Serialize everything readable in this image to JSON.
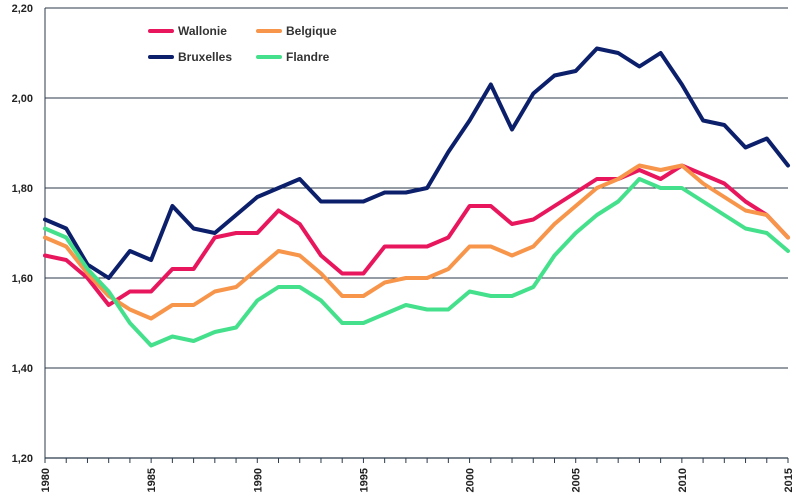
{
  "chart_data": {
    "type": "line",
    "title": "",
    "xlabel": "",
    "ylabel": "",
    "x": [
      1980,
      1981,
      1982,
      1983,
      1984,
      1985,
      1986,
      1987,
      1988,
      1989,
      1990,
      1991,
      1992,
      1993,
      1994,
      1995,
      1996,
      1997,
      1998,
      1999,
      2000,
      2001,
      2002,
      2003,
      2004,
      2005,
      2006,
      2007,
      2008,
      2009,
      2010,
      2011,
      2012,
      2013,
      2014,
      2015
    ],
    "x_tick_labels": [
      "1980",
      "1985",
      "1990",
      "1995",
      "2000",
      "2005",
      "2010",
      "2015"
    ],
    "y_tick_labels": [
      "1,20",
      "1,40",
      "1,60",
      "1,80",
      "2,00",
      "2,20"
    ],
    "ylim": [
      1.2,
      2.2
    ],
    "xlim": [
      1980,
      2015
    ],
    "grid": "horizontal",
    "legend_position": "top-left",
    "series": [
      {
        "name": "Wallonie",
        "color": "#e8175d",
        "values": [
          1.65,
          1.64,
          1.6,
          1.54,
          1.57,
          1.57,
          1.62,
          1.62,
          1.69,
          1.7,
          1.7,
          1.75,
          1.72,
          1.65,
          1.61,
          1.61,
          1.67,
          1.67,
          1.67,
          1.69,
          1.76,
          1.76,
          1.72,
          1.73,
          1.76,
          1.79,
          1.82,
          1.82,
          1.84,
          1.82,
          1.85,
          1.83,
          1.81,
          1.77,
          1.74,
          1.69
        ]
      },
      {
        "name": "Belgique",
        "color": "#f7954a",
        "values": [
          1.69,
          1.67,
          1.61,
          1.56,
          1.53,
          1.51,
          1.54,
          1.54,
          1.57,
          1.58,
          1.62,
          1.66,
          1.65,
          1.61,
          1.56,
          1.56,
          1.59,
          1.6,
          1.6,
          1.62,
          1.67,
          1.67,
          1.65,
          1.67,
          1.72,
          1.76,
          1.8,
          1.82,
          1.85,
          1.84,
          1.85,
          1.81,
          1.78,
          1.75,
          1.74,
          1.69
        ]
      },
      {
        "name": "Bruxelles",
        "color": "#0c1f6b",
        "values": [
          1.73,
          1.71,
          1.63,
          1.6,
          1.66,
          1.64,
          1.76,
          1.71,
          1.7,
          1.74,
          1.78,
          1.8,
          1.82,
          1.77,
          1.77,
          1.77,
          1.79,
          1.79,
          1.8,
          1.88,
          1.95,
          2.03,
          1.93,
          2.01,
          2.05,
          2.06,
          2.11,
          2.1,
          2.07,
          2.1,
          2.03,
          1.95,
          1.94,
          1.89,
          1.91,
          1.85
        ]
      },
      {
        "name": "Flandre",
        "color": "#45e08c",
        "values": [
          1.71,
          1.69,
          1.62,
          1.57,
          1.5,
          1.45,
          1.47,
          1.46,
          1.48,
          1.49,
          1.55,
          1.58,
          1.58,
          1.55,
          1.5,
          1.5,
          1.52,
          1.54,
          1.53,
          1.53,
          1.57,
          1.56,
          1.56,
          1.58,
          1.65,
          1.7,
          1.74,
          1.77,
          1.82,
          1.8,
          1.8,
          1.77,
          1.74,
          1.71,
          1.7,
          1.66
        ]
      }
    ]
  }
}
